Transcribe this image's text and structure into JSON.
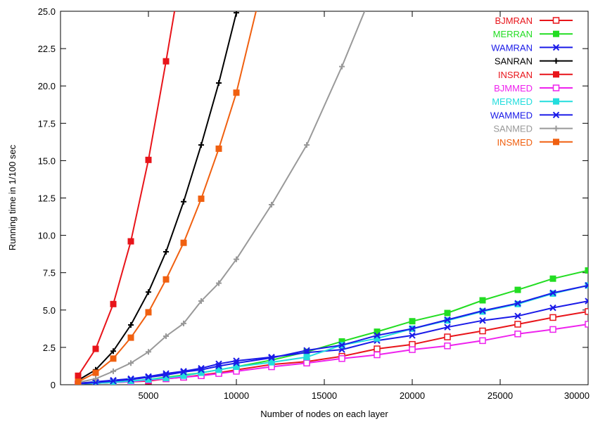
{
  "chart_data": {
    "type": "line",
    "title": "",
    "xlabel": "Number of nodes on each layer",
    "ylabel": "Running time in 1/100 sec",
    "xlim": [
      0,
      30000
    ],
    "ylim": [
      0,
      25
    ],
    "x_ticks": [
      5000,
      10000,
      15000,
      20000,
      25000,
      30000
    ],
    "y_ticks": [
      0,
      2.5,
      5.0,
      7.5,
      10.0,
      12.5,
      15.0,
      17.5,
      20.0,
      22.5,
      25.0
    ],
    "x_tick_labels": [
      "5000",
      "10000",
      "15000",
      "20000",
      "25000",
      "30000"
    ],
    "y_tick_labels": [
      "0",
      "2.5",
      "5.0",
      "7.5",
      "10.0",
      "12.5",
      "15.0",
      "17.5",
      "20.0",
      "22.5",
      "25.0"
    ],
    "grid": false,
    "legend_position": "top-right",
    "series": [
      {
        "name": "BJMRAN",
        "color": "#e8141a",
        "marker": "open-square",
        "points": [
          [
            1000,
            0.05
          ],
          [
            2000,
            0.1
          ],
          [
            3000,
            0.15
          ],
          [
            4000,
            0.2
          ],
          [
            5000,
            0.25
          ],
          [
            6000,
            0.4
          ],
          [
            7000,
            0.5
          ],
          [
            8000,
            0.65
          ],
          [
            9000,
            0.8
          ],
          [
            10000,
            1.0
          ],
          [
            12000,
            1.35
          ],
          [
            14000,
            1.55
          ],
          [
            16000,
            1.9
          ],
          [
            18000,
            2.4
          ],
          [
            20000,
            2.7
          ],
          [
            22000,
            3.2
          ],
          [
            24000,
            3.6
          ],
          [
            26000,
            4.05
          ],
          [
            28000,
            4.5
          ],
          [
            30000,
            4.9
          ]
        ]
      },
      {
        "name": "MERRAN",
        "color": "#22dd22",
        "marker": "filled-square",
        "points": [
          [
            1000,
            0.05
          ],
          [
            2000,
            0.1
          ],
          [
            3000,
            0.15
          ],
          [
            4000,
            0.25
          ],
          [
            5000,
            0.35
          ],
          [
            6000,
            0.5
          ],
          [
            7000,
            0.65
          ],
          [
            8000,
            0.8
          ],
          [
            9000,
            1.0
          ],
          [
            10000,
            1.2
          ],
          [
            12000,
            1.65
          ],
          [
            14000,
            2.2
          ],
          [
            16000,
            2.9
          ],
          [
            18000,
            3.55
          ],
          [
            20000,
            4.25
          ],
          [
            22000,
            4.8
          ],
          [
            24000,
            5.65
          ],
          [
            26000,
            6.35
          ],
          [
            28000,
            7.1
          ],
          [
            30000,
            7.65
          ]
        ]
      },
      {
        "name": "WAMRAN",
        "color": "#1a1ae8",
        "marker": "x",
        "points": [
          [
            1000,
            0.1
          ],
          [
            2000,
            0.2
          ],
          [
            3000,
            0.3
          ],
          [
            4000,
            0.4
          ],
          [
            5000,
            0.55
          ],
          [
            6000,
            0.75
          ],
          [
            7000,
            0.9
          ],
          [
            8000,
            1.1
          ],
          [
            9000,
            1.4
          ],
          [
            10000,
            1.6
          ],
          [
            12000,
            1.85
          ],
          [
            14000,
            2.15
          ],
          [
            16000,
            2.35
          ],
          [
            18000,
            2.95
          ],
          [
            20000,
            3.3
          ],
          [
            22000,
            3.85
          ],
          [
            24000,
            4.3
          ],
          [
            26000,
            4.6
          ],
          [
            28000,
            5.15
          ],
          [
            30000,
            5.6
          ]
        ]
      },
      {
        "name": "SANRAN",
        "color": "#000000",
        "marker": "plus",
        "points": [
          [
            1000,
            0.3
          ],
          [
            2000,
            1.0
          ],
          [
            3000,
            2.25
          ],
          [
            4000,
            4.0
          ],
          [
            5000,
            6.2
          ],
          [
            6000,
            8.9
          ],
          [
            7000,
            12.25
          ],
          [
            8000,
            16.05
          ],
          [
            9000,
            20.2
          ],
          [
            10000,
            24.9
          ]
        ]
      },
      {
        "name": "INSRAN",
        "color": "#e8141a",
        "marker": "filled-square",
        "points": [
          [
            1000,
            0.6
          ],
          [
            2000,
            2.4
          ],
          [
            3000,
            5.4
          ],
          [
            4000,
            9.6
          ],
          [
            5000,
            15.05
          ],
          [
            6000,
            21.65
          ],
          [
            6700,
            26.5
          ]
        ]
      },
      {
        "name": "BJMMED",
        "color": "#ee22ee",
        "marker": "open-square",
        "points": [
          [
            1000,
            0.05
          ],
          [
            2000,
            0.1
          ],
          [
            3000,
            0.15
          ],
          [
            4000,
            0.2
          ],
          [
            5000,
            0.3
          ],
          [
            6000,
            0.4
          ],
          [
            7000,
            0.5
          ],
          [
            8000,
            0.6
          ],
          [
            9000,
            0.75
          ],
          [
            10000,
            0.9
          ],
          [
            12000,
            1.2
          ],
          [
            14000,
            1.45
          ],
          [
            16000,
            1.75
          ],
          [
            18000,
            2.0
          ],
          [
            20000,
            2.35
          ],
          [
            22000,
            2.6
          ],
          [
            24000,
            2.95
          ],
          [
            26000,
            3.4
          ],
          [
            28000,
            3.7
          ],
          [
            30000,
            4.05
          ]
        ]
      },
      {
        "name": "MERMED",
        "color": "#22dddd",
        "marker": "filled-square",
        "points": [
          [
            1000,
            0.05
          ],
          [
            2000,
            0.1
          ],
          [
            3000,
            0.15
          ],
          [
            4000,
            0.25
          ],
          [
            5000,
            0.35
          ],
          [
            6000,
            0.45
          ],
          [
            7000,
            0.6
          ],
          [
            8000,
            0.8
          ],
          [
            9000,
            1.0
          ],
          [
            10000,
            1.2
          ],
          [
            12000,
            1.5
          ],
          [
            14000,
            1.85
          ],
          [
            16000,
            2.65
          ],
          [
            18000,
            3.1
          ],
          [
            20000,
            3.75
          ],
          [
            22000,
            4.3
          ],
          [
            24000,
            4.9
          ],
          [
            26000,
            5.4
          ],
          [
            28000,
            6.1
          ],
          [
            30000,
            6.65
          ]
        ]
      },
      {
        "name": "WAMMED",
        "color": "#1a1ae8",
        "marker": "x",
        "points": [
          [
            1000,
            0.05
          ],
          [
            2000,
            0.15
          ],
          [
            3000,
            0.25
          ],
          [
            4000,
            0.35
          ],
          [
            5000,
            0.5
          ],
          [
            6000,
            0.65
          ],
          [
            7000,
            0.85
          ],
          [
            8000,
            1.0
          ],
          [
            9000,
            1.25
          ],
          [
            10000,
            1.45
          ],
          [
            12000,
            1.8
          ],
          [
            14000,
            2.3
          ],
          [
            16000,
            2.65
          ],
          [
            18000,
            3.3
          ],
          [
            20000,
            3.75
          ],
          [
            22000,
            4.35
          ],
          [
            24000,
            4.95
          ],
          [
            26000,
            5.45
          ],
          [
            28000,
            6.15
          ],
          [
            30000,
            6.65
          ]
        ]
      },
      {
        "name": "SANMED",
        "color": "#999999",
        "marker": "plus",
        "points": [
          [
            1000,
            0.15
          ],
          [
            2000,
            0.4
          ],
          [
            3000,
            0.9
          ],
          [
            4000,
            1.45
          ],
          [
            5000,
            2.2
          ],
          [
            6000,
            3.25
          ],
          [
            7000,
            4.1
          ],
          [
            8000,
            5.6
          ],
          [
            9000,
            6.8
          ],
          [
            10000,
            8.4
          ],
          [
            12000,
            12.05
          ],
          [
            14000,
            16.05
          ],
          [
            16000,
            21.3
          ],
          [
            17500,
            25.6
          ]
        ]
      },
      {
        "name": "INSMED",
        "color": "#f06010",
        "marker": "filled-square",
        "points": [
          [
            1000,
            0.2
          ],
          [
            2000,
            0.8
          ],
          [
            3000,
            1.75
          ],
          [
            4000,
            3.15
          ],
          [
            5000,
            4.85
          ],
          [
            6000,
            7.05
          ],
          [
            7000,
            9.5
          ],
          [
            8000,
            12.45
          ],
          [
            9000,
            15.8
          ],
          [
            10000,
            19.55
          ],
          [
            11200,
            25.4
          ]
        ]
      }
    ]
  }
}
